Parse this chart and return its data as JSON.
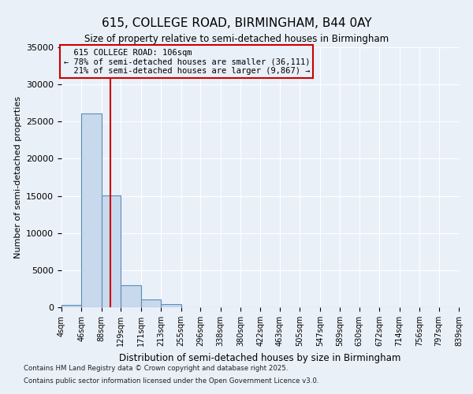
{
  "title_line1": "615, COLLEGE ROAD, BIRMINGHAM, B44 0AY",
  "title_line2": "Size of property relative to semi-detached houses in Birmingham",
  "xlabel": "Distribution of semi-detached houses by size in Birmingham",
  "ylabel": "Number of semi-detached properties",
  "bar_edges": [
    4,
    46,
    88,
    129,
    171,
    213,
    255,
    296,
    338,
    380,
    422,
    463,
    505,
    547,
    589,
    630,
    672,
    714,
    756,
    797,
    839
  ],
  "bar_heights": [
    350,
    26100,
    15100,
    3000,
    1050,
    400,
    0,
    0,
    0,
    0,
    0,
    0,
    0,
    0,
    0,
    0,
    0,
    0,
    0,
    0
  ],
  "bar_color": "#c8d9ed",
  "bar_edge_color": "#5b8db8",
  "property_size": 106,
  "property_label": "615 COLLEGE ROAD: 106sqm",
  "pct_smaller": 78,
  "pct_larger": 21,
  "n_smaller": 36111,
  "n_larger": 9867,
  "vline_color": "#cc0000",
  "ylim": [
    0,
    35000
  ],
  "yticks": [
    0,
    5000,
    10000,
    15000,
    20000,
    25000,
    30000,
    35000
  ],
  "annotation_box_color": "#cc0000",
  "background_color": "#eaf0f8",
  "grid_color": "#ffffff",
  "footnote_line1": "Contains HM Land Registry data © Crown copyright and database right 2025.",
  "footnote_line2": "Contains public sector information licensed under the Open Government Licence v3.0."
}
